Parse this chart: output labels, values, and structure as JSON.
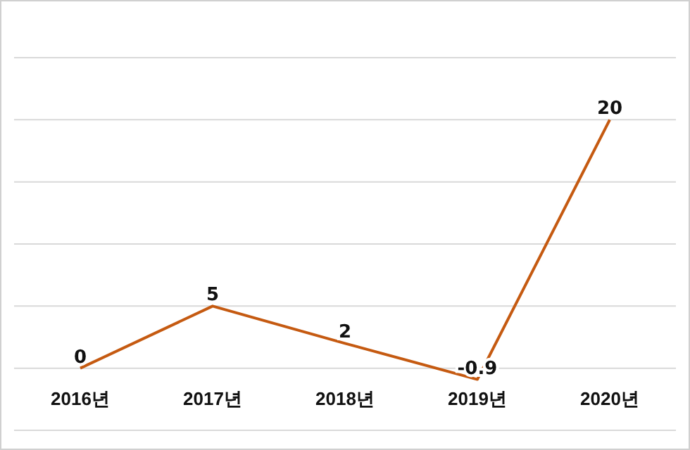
{
  "chart_data": {
    "type": "line",
    "categories": [
      "2016년",
      "2017년",
      "2018년",
      "2019년",
      "2020년"
    ],
    "series": [
      {
        "color": "#c55a11",
        "values": [
          0,
          5,
          2,
          -0.9,
          20
        ]
      }
    ],
    "ylim": [
      -5,
      25
    ],
    "yticks": [
      {
        "value": -5,
        "label": null
      },
      {
        "value": 0,
        "label": null
      },
      {
        "value": 5,
        "label": null
      },
      {
        "value": 10,
        "label": null
      },
      {
        "value": 15,
        "label": null
      },
      {
        "value": 20,
        "label": null
      },
      {
        "value": 25,
        "label": null
      }
    ],
    "grid": "y",
    "tick_labels": "x",
    "data_labels": true,
    "marker": "none",
    "line_style": "solid"
  }
}
